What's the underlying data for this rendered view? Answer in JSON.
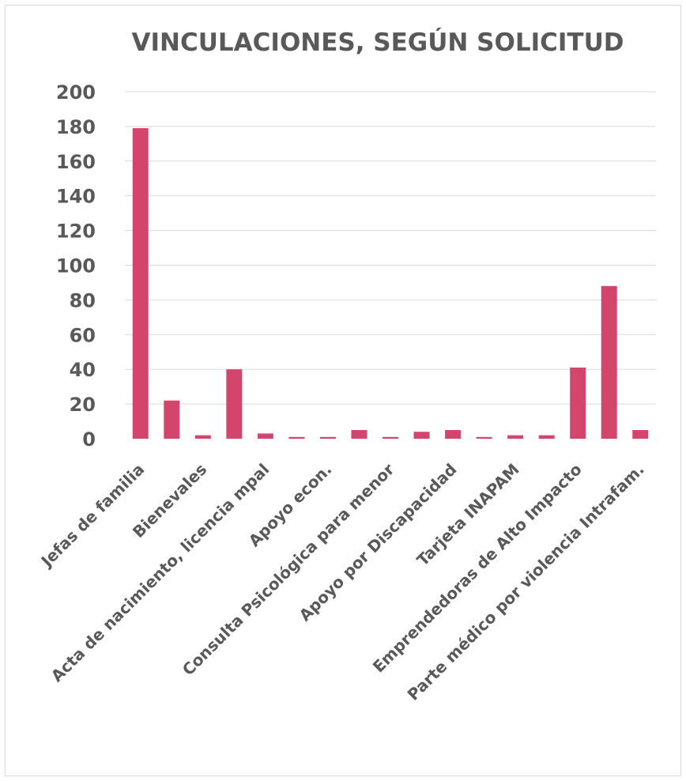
{
  "chart_data": {
    "type": "bar",
    "title": "VINCULACIONES, SEGÚN SOLICITUD",
    "xlabel": "",
    "ylabel": "",
    "ylim": [
      0,
      200
    ],
    "yticks": [
      0,
      20,
      40,
      60,
      80,
      100,
      120,
      140,
      160,
      180,
      200
    ],
    "grid": true,
    "legend": "none",
    "bar_color": "#d4456e",
    "categories": [
      "Jefas de familia",
      "",
      "Bienevales",
      "",
      "Acta de nacimiento, licencia mpal",
      "",
      "Apoyo econ.",
      "",
      "Consulta Psicológica para menor",
      "",
      "Apoyo por Discapacidad",
      "",
      "Tarjeta INAPAM",
      "",
      "Emprendedoras de Alto Impacto",
      "",
      "Parte médico por violencia Intrafam."
    ],
    "values": [
      179,
      22,
      2,
      40,
      3,
      1,
      1,
      5,
      1,
      4,
      5,
      1,
      2,
      2,
      41,
      88,
      5
    ]
  }
}
